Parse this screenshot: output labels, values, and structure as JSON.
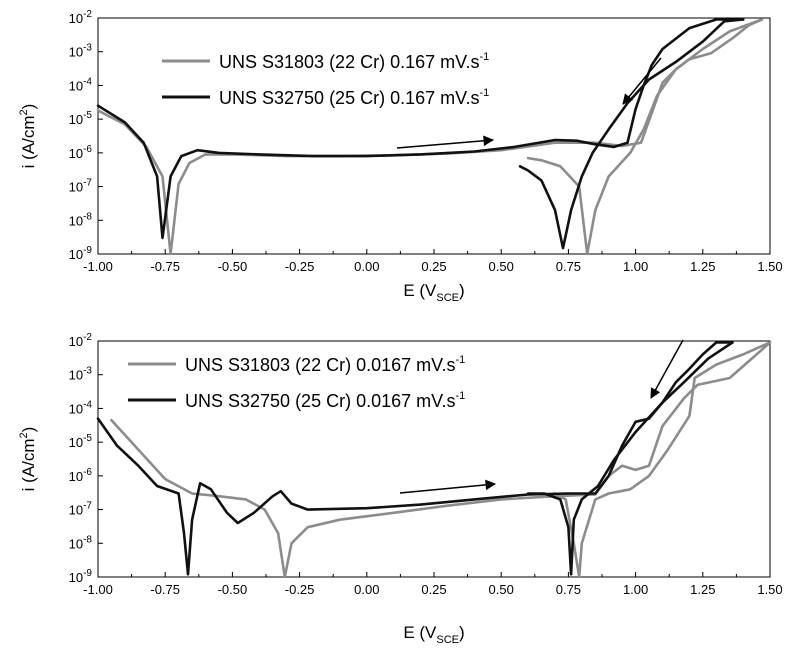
{
  "chart_data": [
    {
      "type": "line",
      "xlabel": {
        "main": "E (V",
        "sub": "SCE",
        "tail": ")"
      },
      "ylabel": {
        "main": "i (A/cm",
        "sup": "2",
        "tail": ")"
      },
      "xlim": [
        -1.0,
        1.5
      ],
      "ylim": [
        1e-09,
        0.01
      ],
      "yscale": "log",
      "xticks": [
        "-1.00",
        "-0.75",
        "-0.50",
        "-0.25",
        "0.00",
        "0.25",
        "0.50",
        "0.75",
        "1.00",
        "1.25",
        "1.50"
      ],
      "yticks": [
        {
          "base": "10",
          "exp": "-9"
        },
        {
          "base": "10",
          "exp": "-8"
        },
        {
          "base": "10",
          "exp": "-7"
        },
        {
          "base": "10",
          "exp": "-6"
        },
        {
          "base": "10",
          "exp": "-5"
        },
        {
          "base": "10",
          "exp": "-4"
        },
        {
          "base": "10",
          "exp": "-3"
        },
        {
          "base": "10",
          "exp": "-2"
        }
      ],
      "grid": false,
      "legend_position": "top-left",
      "series": [
        {
          "name": "UNS S31803 (22 Cr) 0.167 mV.s",
          "name_sup": "-1",
          "color": "#8c8c8c",
          "forward": [
            [
              -1.0,
              1.8e-05
            ],
            [
              -0.9,
              7e-06
            ],
            [
              -0.82,
              1.5e-06
            ],
            [
              -0.76,
              2e-07
            ],
            [
              -0.73,
              1e-09
            ],
            [
              -0.7,
              1.2e-07
            ],
            [
              -0.66,
              5e-07
            ],
            [
              -0.6,
              9e-07
            ],
            [
              -0.5,
              9e-07
            ],
            [
              -0.3,
              8e-07
            ],
            [
              -0.1,
              8e-07
            ],
            [
              0.1,
              8.5e-07
            ],
            [
              0.3,
              9.5e-07
            ],
            [
              0.5,
              1.2e-06
            ],
            [
              0.7,
              2e-06
            ],
            [
              0.85,
              2e-06
            ],
            [
              0.95,
              1.6e-06
            ],
            [
              1.02,
              2e-06
            ],
            [
              1.06,
              1.5e-05
            ],
            [
              1.1,
              0.00012
            ],
            [
              1.15,
              0.0003
            ],
            [
              1.2,
              0.0006
            ],
            [
              1.28,
              0.0009
            ],
            [
              1.36,
              0.0025
            ],
            [
              1.42,
              0.006
            ],
            [
              1.47,
              0.009
            ]
          ],
          "reverse": [
            [
              1.47,
              0.009
            ],
            [
              1.35,
              0.004
            ],
            [
              1.25,
              0.0012
            ],
            [
              1.15,
              0.0003
            ],
            [
              1.08,
              5e-05
            ],
            [
              1.03,
              5e-06
            ],
            [
              0.98,
              1e-06
            ],
            [
              0.9,
              2e-07
            ],
            [
              0.85,
              2e-08
            ],
            [
              0.82,
              1e-09
            ],
            [
              0.79,
              1e-07
            ],
            [
              0.72,
              4e-07
            ],
            [
              0.65,
              6e-07
            ],
            [
              0.6,
              7e-07
            ]
          ]
        },
        {
          "name": "UNS S32750 (25 Cr) 0.167 mV.s",
          "name_sup": "-1",
          "color": "#111111",
          "forward": [
            [
              -1.0,
              2.5e-05
            ],
            [
              -0.9,
              8e-06
            ],
            [
              -0.83,
              2e-06
            ],
            [
              -0.78,
              2e-07
            ],
            [
              -0.76,
              3e-09
            ],
            [
              -0.73,
              2e-07
            ],
            [
              -0.69,
              8e-07
            ],
            [
              -0.63,
              1.2e-06
            ],
            [
              -0.55,
              1e-06
            ],
            [
              -0.4,
              9e-07
            ],
            [
              -0.2,
              8e-07
            ],
            [
              0.0,
              8e-07
            ],
            [
              0.2,
              9e-07
            ],
            [
              0.4,
              1.1e-06
            ],
            [
              0.55,
              1.5e-06
            ],
            [
              0.7,
              2.4e-06
            ],
            [
              0.78,
              2.3e-06
            ],
            [
              0.85,
              1.8e-06
            ],
            [
              0.92,
              1.5e-06
            ],
            [
              0.97,
              2e-06
            ],
            [
              1.0,
              2e-05
            ],
            [
              1.03,
              0.0001
            ],
            [
              1.06,
              0.0004
            ],
            [
              1.1,
              0.0012
            ],
            [
              1.2,
              0.005
            ],
            [
              1.3,
              0.009
            ],
            [
              1.4,
              0.009
            ]
          ],
          "reverse": [
            [
              1.4,
              0.009
            ],
            [
              1.33,
              0.008
            ],
            [
              1.25,
              0.002
            ],
            [
              1.15,
              0.0005
            ],
            [
              1.05,
              0.00015
            ],
            [
              0.97,
              3e-05
            ],
            [
              0.9,
              5e-06
            ],
            [
              0.84,
              1e-06
            ],
            [
              0.8,
              2e-07
            ],
            [
              0.76,
              2e-08
            ],
            [
              0.73,
              1.5e-09
            ],
            [
              0.7,
              2e-08
            ],
            [
              0.65,
              1.5e-07
            ],
            [
              0.6,
              3e-07
            ],
            [
              0.57,
              4e-07
            ]
          ]
        }
      ]
    },
    {
      "type": "line",
      "xlabel": {
        "main": "E (V",
        "sub": "SCE",
        "tail": ")"
      },
      "ylabel": {
        "main": "i (A/cm",
        "sup": "2",
        "tail": ")"
      },
      "xlim": [
        -1.0,
        1.5
      ],
      "ylim": [
        1e-09,
        0.01
      ],
      "yscale": "log",
      "xticks": [
        "-1.00",
        "-0.75",
        "-0.50",
        "-0.25",
        "0.00",
        "0.25",
        "0.50",
        "0.75",
        "1.00",
        "1.25",
        "1.50"
      ],
      "yticks": [
        {
          "base": "10",
          "exp": "-9"
        },
        {
          "base": "10",
          "exp": "-8"
        },
        {
          "base": "10",
          "exp": "-7"
        },
        {
          "base": "10",
          "exp": "-6"
        },
        {
          "base": "10",
          "exp": "-5"
        },
        {
          "base": "10",
          "exp": "-4"
        },
        {
          "base": "10",
          "exp": "-3"
        },
        {
          "base": "10",
          "exp": "-2"
        }
      ],
      "grid": false,
      "legend_position": "top-left",
      "series": [
        {
          "name": "UNS S31803 (22 Cr) 0.0167 mV.s",
          "name_sup": "-1",
          "color": "#8c8c8c",
          "forward": [
            [
              -0.95,
              4.5e-05
            ],
            [
              -0.85,
              6e-06
            ],
            [
              -0.75,
              8e-07
            ],
            [
              -0.65,
              3e-07
            ],
            [
              -0.55,
              2.5e-07
            ],
            [
              -0.45,
              2e-07
            ],
            [
              -0.38,
              1e-07
            ],
            [
              -0.33,
              2e-08
            ],
            [
              -0.305,
              1e-09
            ],
            [
              -0.28,
              1e-08
            ],
            [
              -0.22,
              3e-08
            ],
            [
              -0.1,
              5e-08
            ],
            [
              0.1,
              8e-08
            ],
            [
              0.3,
              1.3e-07
            ],
            [
              0.5,
              2e-07
            ],
            [
              0.7,
              2.5e-07
            ],
            [
              0.85,
              2.8e-07
            ],
            [
              0.9,
              1e-06
            ],
            [
              0.95,
              2e-06
            ],
            [
              1.0,
              1.5e-06
            ],
            [
              1.05,
              2e-06
            ],
            [
              1.1,
              3e-05
            ],
            [
              1.18,
              0.0002
            ],
            [
              1.23,
              0.0005
            ],
            [
              1.35,
              0.0008
            ],
            [
              1.45,
              0.004
            ],
            [
              1.5,
              0.009
            ]
          ],
          "reverse": [
            [
              1.5,
              0.009
            ],
            [
              1.4,
              0.004
            ],
            [
              1.3,
              0.002
            ],
            [
              1.22,
              0.0008
            ],
            [
              1.2,
              6e-05
            ],
            [
              1.12,
              6e-06
            ],
            [
              1.05,
              1e-06
            ],
            [
              0.98,
              4e-07
            ],
            [
              0.9,
              3e-07
            ],
            [
              0.85,
              2e-07
            ],
            [
              0.8,
              1e-08
            ],
            [
              0.79,
              1e-09
            ],
            [
              0.77,
              1e-08
            ],
            [
              0.74,
              2e-07
            ],
            [
              0.7,
              3e-07
            ]
          ]
        },
        {
          "name": "UNS S32750 (25 Cr) 0.0167 mV.s",
          "name_sup": "-1",
          "color": "#111111",
          "forward": [
            [
              -1.0,
              5e-05
            ],
            [
              -0.93,
              8e-06
            ],
            [
              -0.85,
              2e-06
            ],
            [
              -0.78,
              5e-07
            ],
            [
              -0.7,
              3e-07
            ],
            [
              -0.68,
              2e-08
            ],
            [
              -0.665,
              1.2e-09
            ],
            [
              -0.65,
              5e-08
            ],
            [
              -0.62,
              6e-07
            ],
            [
              -0.58,
              4e-07
            ],
            [
              -0.52,
              8e-08
            ],
            [
              -0.48,
              4e-08
            ],
            [
              -0.42,
              8e-08
            ],
            [
              -0.35,
              2.5e-07
            ],
            [
              -0.32,
              3.5e-07
            ],
            [
              -0.28,
              1.5e-07
            ],
            [
              -0.22,
              1e-07
            ],
            [
              0.0,
              1.1e-07
            ],
            [
              0.2,
              1.4e-07
            ],
            [
              0.4,
              2e-07
            ],
            [
              0.6,
              2.8e-07
            ],
            [
              0.75,
              3e-07
            ],
            [
              0.85,
              3e-07
            ],
            [
              0.9,
              1e-06
            ],
            [
              0.95,
              8e-06
            ],
            [
              1.0,
              4e-05
            ],
            [
              1.05,
              5e-05
            ],
            [
              1.1,
              0.00015
            ],
            [
              1.15,
              0.0006
            ],
            [
              1.2,
              0.0015
            ],
            [
              1.25,
              0.004
            ],
            [
              1.3,
              0.009
            ],
            [
              1.36,
              0.009
            ]
          ],
          "reverse": [
            [
              1.36,
              0.009
            ],
            [
              1.27,
              0.003
            ],
            [
              1.18,
              0.0006
            ],
            [
              1.1,
              0.00015
            ],
            [
              1.0,
              2e-05
            ],
            [
              0.92,
              3e-06
            ],
            [
              0.86,
              5e-07
            ],
            [
              0.8,
              2e-07
            ],
            [
              0.77,
              5e-08
            ],
            [
              0.76,
              1.2e-09
            ],
            [
              0.75,
              3e-08
            ],
            [
              0.72,
              2e-07
            ],
            [
              0.66,
              3e-07
            ],
            [
              0.6,
              3e-07
            ]
          ]
        }
      ]
    }
  ]
}
